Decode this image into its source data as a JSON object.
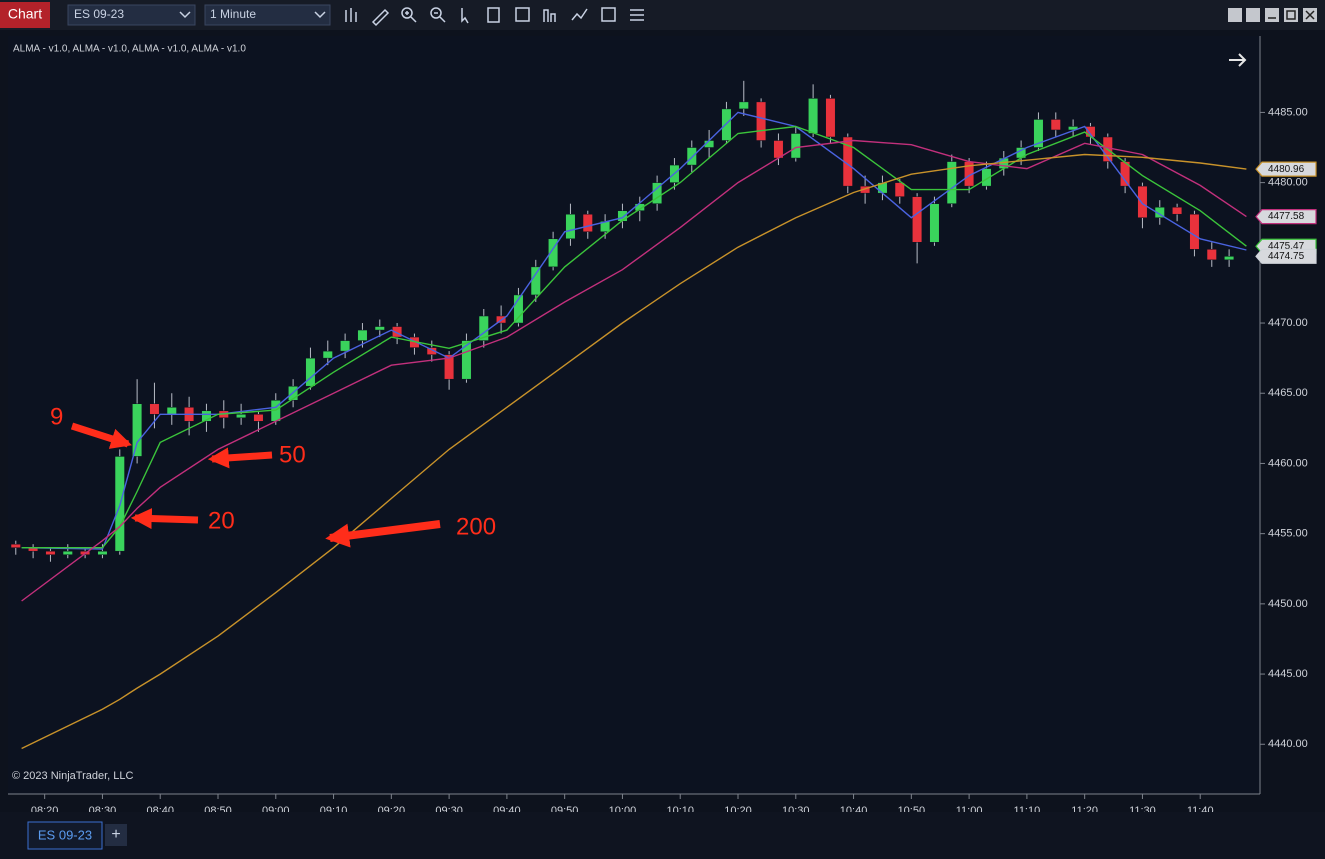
{
  "toolbar": {
    "button": "Chart",
    "instrument": "ES 09-23",
    "interval": "1 Minute"
  },
  "tabs": [
    "ES 09-23",
    "+"
  ],
  "chart_data": {
    "type": "candlestick",
    "indicator_label": "ALMA - v1.0, ALMA - v1.0, ALMA - v1.0, ALMA - v1.0",
    "copyright": "© 2023 NinjaTrader, LLC",
    "up_color": "#3ad35c",
    "down_color": "#e8323c",
    "wick_color": "#b8bcc6",
    "x": [
      "08:15",
      "08:18",
      "08:21",
      "08:24",
      "08:27",
      "08:30",
      "08:33",
      "08:36",
      "08:39",
      "08:42",
      "08:45",
      "08:48",
      "08:51",
      "08:54",
      "08:57",
      "09:00",
      "09:03",
      "09:06",
      "09:09",
      "09:12",
      "09:15",
      "09:18",
      "09:21",
      "09:24",
      "09:27",
      "09:30",
      "09:33",
      "09:36",
      "09:39",
      "09:42",
      "09:45",
      "09:48",
      "09:51",
      "09:54",
      "09:57",
      "10:00",
      "10:03",
      "10:06",
      "10:09",
      "10:12",
      "10:15",
      "10:18",
      "10:21",
      "10:24",
      "10:27",
      "10:30",
      "10:33",
      "10:36",
      "10:39",
      "10:42",
      "10:45",
      "10:48",
      "10:51",
      "10:54",
      "10:57",
      "11:00",
      "11:03",
      "11:06",
      "11:09",
      "11:12",
      "11:15",
      "11:18",
      "11:21",
      "11:24",
      "11:27",
      "11:30",
      "11:33",
      "11:36",
      "11:39",
      "11:42",
      "11:45"
    ],
    "open": [
      4454.25,
      4454.0,
      4453.75,
      4453.5,
      4453.75,
      4453.5,
      4453.75,
      4460.5,
      4464.25,
      4463.5,
      4464.0,
      4463.0,
      4463.75,
      4463.25,
      4463.5,
      4463.0,
      4464.5,
      4465.5,
      4467.5,
      4468.0,
      4468.75,
      4469.5,
      4469.75,
      4469.0,
      4468.25,
      4467.75,
      4466.0,
      4468.75,
      4470.5,
      4470.0,
      4472.0,
      4474.0,
      4476.0,
      4477.75,
      4476.5,
      4477.25,
      4478.0,
      4478.5,
      4480.0,
      4481.25,
      4482.5,
      4483.0,
      4485.25,
      4485.75,
      4483.0,
      4481.75,
      4483.5,
      4486.0,
      4483.25,
      4479.75,
      4479.25,
      4480.0,
      4479.0,
      4475.75,
      4478.5,
      4481.5,
      4479.75,
      4481.0,
      4481.75,
      4482.5,
      4484.5,
      4483.75,
      4484.0,
      4483.25,
      4481.5,
      4479.75,
      4477.5,
      4478.25,
      4477.75,
      4475.25,
      4474.5
    ],
    "high": [
      4454.5,
      4454.25,
      4454.0,
      4454.25,
      4454.0,
      4454.25,
      4461.0,
      4466.0,
      4465.75,
      4465.0,
      4464.75,
      4464.25,
      4464.5,
      4464.25,
      4463.75,
      4465.0,
      4466.0,
      4468.25,
      4468.75,
      4469.25,
      4470.0,
      4470.25,
      4470.0,
      4469.25,
      4468.75,
      4468.0,
      4469.25,
      4471.0,
      4471.25,
      4472.5,
      4474.5,
      4476.5,
      4478.5,
      4478.0,
      4477.75,
      4478.5,
      4479.0,
      4480.5,
      4481.75,
      4483.0,
      4483.75,
      4485.75,
      4487.25,
      4486.0,
      4483.5,
      4484.0,
      4487.0,
      4486.25,
      4483.5,
      4480.5,
      4480.5,
      4480.25,
      4479.25,
      4479.0,
      4482.0,
      4481.75,
      4481.5,
      4482.25,
      4483.0,
      4485.0,
      4485.0,
      4484.5,
      4484.25,
      4483.5,
      4481.75,
      4480.0,
      4478.75,
      4478.5,
      4478.0,
      4475.75,
      4475.25
    ],
    "low": [
      4453.5,
      4453.25,
      4453.0,
      4453.25,
      4453.25,
      4453.25,
      4453.5,
      4460.0,
      4462.5,
      4462.75,
      4462.0,
      4462.25,
      4462.5,
      4462.75,
      4462.25,
      4462.75,
      4464.0,
      4465.25,
      4467.0,
      4467.5,
      4468.25,
      4469.0,
      4468.5,
      4467.75,
      4467.25,
      4465.25,
      4465.75,
      4468.25,
      4469.25,
      4469.75,
      4471.5,
      4473.75,
      4475.5,
      4476.0,
      4476.0,
      4476.75,
      4477.25,
      4478.0,
      4479.5,
      4480.75,
      4481.75,
      4482.75,
      4484.75,
      4482.5,
      4481.25,
      4481.5,
      4483.25,
      4482.75,
      4479.25,
      4478.5,
      4478.75,
      4478.5,
      4474.25,
      4475.5,
      4478.25,
      4479.25,
      4479.5,
      4480.5,
      4481.25,
      4482.25,
      4483.25,
      4483.25,
      4482.75,
      4481.0,
      4479.25,
      4476.75,
      4477.0,
      4477.25,
      4474.75,
      4474.0,
      4474.0
    ],
    "close": [
      4454.0,
      4453.75,
      4453.5,
      4453.75,
      4453.5,
      4453.75,
      4460.5,
      4464.25,
      4463.5,
      4464.0,
      4463.0,
      4463.75,
      4463.25,
      4463.5,
      4463.0,
      4464.5,
      4465.5,
      4467.5,
      4468.0,
      4468.75,
      4469.5,
      4469.75,
      4469.0,
      4468.25,
      4467.75,
      4466.0,
      4468.75,
      4470.5,
      4470.0,
      4472.0,
      4474.0,
      4476.0,
      4477.75,
      4476.5,
      4477.25,
      4478.0,
      4478.5,
      4480.0,
      4481.25,
      4482.5,
      4483.0,
      4485.25,
      4485.75,
      4483.0,
      4481.75,
      4483.5,
      4486.0,
      4483.25,
      4479.75,
      4479.25,
      4480.0,
      4479.0,
      4475.75,
      4478.5,
      4481.5,
      4479.75,
      4481.0,
      4481.75,
      4482.5,
      4484.5,
      4483.75,
      4484.0,
      4483.25,
      4481.5,
      4479.75,
      4477.5,
      4478.25,
      4477.75,
      4475.25,
      4474.5,
      4474.75
    ],
    "series": [
      {
        "name": "9",
        "color": "#4a63e0",
        "x": [
          "08:16",
          "08:30",
          "08:33",
          "08:36",
          "08:40",
          "08:50",
          "09:00",
          "09:10",
          "09:20",
          "09:30",
          "09:40",
          "09:50",
          "10:00",
          "10:10",
          "10:20",
          "10:30",
          "10:40",
          "10:50",
          "11:00",
          "11:10",
          "11:20",
          "11:30",
          "11:40",
          "11:48"
        ],
        "values": [
          4454,
          4453.9,
          4457,
          4461.5,
          4463.5,
          4463.5,
          4464,
          4467.5,
          4469.5,
          4467.5,
          4470.5,
          4476.5,
          4477.5,
          4481,
          4485,
          4484,
          4481,
          4477.5,
          4480.5,
          4482.5,
          4484,
          4478.5,
          4476,
          4475.2
        ]
      },
      {
        "name": "20",
        "color": "#3bc43b",
        "x": [
          "08:16",
          "08:30",
          "08:33",
          "08:36",
          "08:40",
          "08:50",
          "09:00",
          "09:10",
          "09:20",
          "09:30",
          "09:40",
          "09:50",
          "10:00",
          "10:10",
          "10:20",
          "10:30",
          "10:40",
          "10:50",
          "11:00",
          "11:10",
          "11:20",
          "11:30",
          "11:40",
          "11:48"
        ],
        "values": [
          4454,
          4454,
          4455.5,
          4458,
          4461.5,
          4463.5,
          4463.8,
          4466.5,
          4469,
          4468.2,
          4469.5,
          4474,
          4477.3,
          4480,
          4483.5,
          4484,
          4482.5,
          4479.5,
          4479.5,
          4482,
          4483.6,
          4480.5,
          4478,
          4475.47
        ]
      },
      {
        "name": "50",
        "color": "#c2307c",
        "x": [
          "08:16",
          "08:30",
          "08:33",
          "08:36",
          "08:40",
          "08:50",
          "09:00",
          "09:10",
          "09:20",
          "09:30",
          "09:40",
          "09:50",
          "10:00",
          "10:10",
          "10:20",
          "10:30",
          "10:40",
          "10:50",
          "11:00",
          "11:10",
          "11:20",
          "11:30",
          "11:40",
          "11:48"
        ],
        "values": [
          4450.2,
          4454.5,
          4455.5,
          4456.8,
          4458.3,
          4461,
          4463,
          4465,
          4467,
          4467.5,
          4469,
          4471.5,
          4473.8,
          4476.8,
          4480,
          4482.5,
          4483,
          4482.7,
          4481.5,
          4481,
          4482.8,
          4482,
          4479.8,
          4477.58
        ]
      },
      {
        "name": "200",
        "color": "#c8922a",
        "x": [
          "08:16",
          "08:30",
          "08:33",
          "08:36",
          "08:40",
          "08:50",
          "09:00",
          "09:10",
          "09:20",
          "09:30",
          "09:40",
          "09:50",
          "10:00",
          "10:10",
          "10:20",
          "10:30",
          "10:40",
          "10:50",
          "11:00",
          "11:10",
          "11:20",
          "11:30",
          "11:40",
          "11:48"
        ],
        "values": [
          4439.7,
          4442.5,
          4443.2,
          4444,
          4445,
          4447.7,
          4450.8,
          4454,
          4457.5,
          4461,
          4464,
          4467,
          4470,
          4472.8,
          4475.4,
          4477.5,
          4479.3,
          4480.6,
          4481.2,
          4481.6,
          4482,
          4481.8,
          4481.4,
          4480.96
        ]
      }
    ],
    "price_markers": [
      4480.96,
      4477.58,
      4475.47,
      4474.75
    ],
    "xlim": [
      "08:14",
      "11:50"
    ],
    "xticks": [
      "08:20",
      "08:30",
      "08:40",
      "08:50",
      "09:00",
      "09:10",
      "09:20",
      "09:30",
      "09:40",
      "09:50",
      "10:00",
      "10:10",
      "10:20",
      "10:30",
      "10:40",
      "10:50",
      "11:00",
      "11:10",
      "11:20",
      "11:30",
      "11:40"
    ],
    "ylim": [
      4436.6,
      4490.3
    ],
    "yticks": [
      {
        "value": 4440,
        "label": "4440.00"
      },
      {
        "value": 4445,
        "label": "4445.00"
      },
      {
        "value": 4450,
        "label": "4450.00"
      },
      {
        "value": 4455,
        "label": "4455.00"
      },
      {
        "value": 4460,
        "label": "4460.00"
      },
      {
        "value": 4465,
        "label": "4465.00"
      },
      {
        "value": 4470,
        "label": "4470.00"
      },
      {
        "value": 4475,
        "label": "4475.00"
      },
      {
        "value": 4480,
        "label": "4480.00"
      },
      {
        "value": 4485,
        "label": "4485.00"
      }
    ],
    "grid": false
  }
}
